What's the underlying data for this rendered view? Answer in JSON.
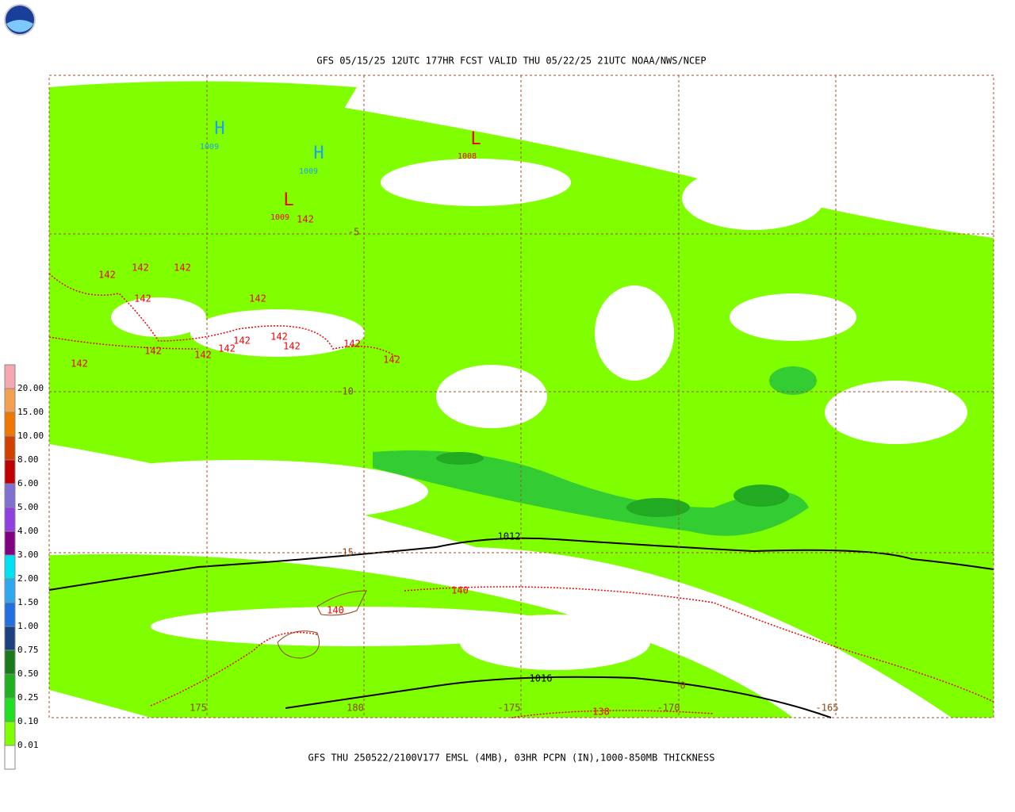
{
  "header": {
    "title": "GFS 05/15/25 12UTC 177HR FCST VALID THU 05/22/25 21UTC NOAA/NWS/NCEP"
  },
  "footer": {
    "caption": "GFS THU 250522/2100V177 EMSL (4MB), 03HR PCPN (IN),1000-850MB THICKNESS"
  },
  "legend": {
    "labels": [
      "20.00",
      "15.00",
      "10.00",
      "8.00",
      "6.00",
      "5.00",
      "4.00",
      "3.00",
      "2.00",
      "1.50",
      "1.00",
      "0.75",
      "0.50",
      "0.25",
      "0.10",
      "0.01"
    ]
  },
  "map": {
    "highs": [
      {
        "symbol": "H",
        "value": "1009"
      },
      {
        "symbol": "H",
        "value": "1009"
      }
    ],
    "lows": [
      {
        "symbol": "L",
        "value": "1008"
      },
      {
        "symbol": "L",
        "value": "1009"
      }
    ],
    "latitudes": [
      "-5",
      "-10",
      "-15"
    ],
    "longitudes": [
      "175",
      "180",
      "-175",
      "-170",
      "-165"
    ],
    "isobars": [
      "1012",
      "1016"
    ],
    "thickness": [
      "142",
      "142",
      "142",
      "142",
      "142",
      "142",
      "142",
      "142",
      "142",
      "142",
      "142",
      "142",
      "142",
      "142",
      "142",
      "140",
      "140",
      "138"
    ],
    "misc": [
      "0"
    ]
  }
}
